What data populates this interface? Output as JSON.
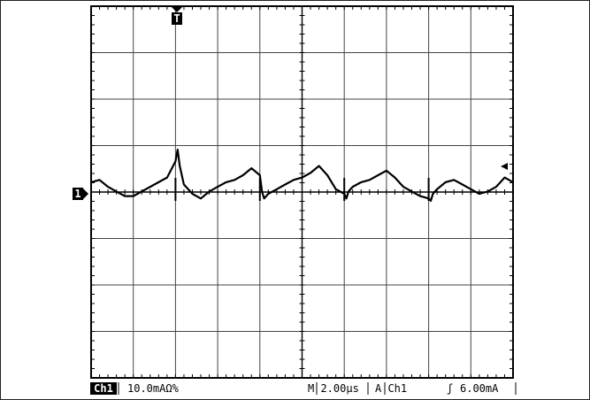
{
  "chart_data": {
    "type": "line",
    "instrument": "oscilloscope",
    "grid": {
      "divisions_x": 10,
      "divisions_y": 8,
      "minor_ticks": true
    },
    "series": [
      {
        "name": "Ch1",
        "x": [
          0,
          0.2,
          0.4,
          0.6,
          0.8,
          1.0,
          1.2,
          1.4,
          1.6,
          1.8,
          2.0,
          2.05,
          2.1,
          2.2,
          2.4,
          2.6,
          2.8,
          3.0,
          3.2,
          3.4,
          3.6,
          3.8,
          4.0,
          4.05,
          4.1,
          4.2,
          4.4,
          4.6,
          4.8,
          5.0,
          5.2,
          5.4,
          5.6,
          5.8,
          6.0,
          6.05,
          6.1,
          6.2,
          6.4,
          6.6,
          6.8,
          7.0,
          7.2,
          7.4,
          7.6,
          7.8,
          8.0,
          8.05,
          8.1,
          8.2,
          8.4,
          8.6,
          8.8,
          9.0,
          9.2,
          9.4,
          9.6,
          9.8,
          10.0
        ],
        "y": [
          0.25,
          0.3,
          0.15,
          0.05,
          -0.05,
          -0.05,
          0.05,
          0.15,
          0.25,
          0.35,
          0.7,
          0.95,
          0.6,
          0.2,
          0.0,
          -0.1,
          0.05,
          0.15,
          0.25,
          0.3,
          0.4,
          0.55,
          0.4,
          0.05,
          -0.1,
          0.0,
          0.1,
          0.2,
          0.3,
          0.35,
          0.45,
          0.6,
          0.4,
          0.1,
          0.0,
          -0.1,
          0.05,
          0.15,
          0.25,
          0.3,
          0.4,
          0.5,
          0.35,
          0.15,
          0.05,
          -0.05,
          -0.1,
          -0.15,
          0.0,
          0.1,
          0.25,
          0.3,
          0.2,
          0.1,
          0.0,
          0.05,
          0.15,
          0.35,
          0.25
        ]
      }
    ],
    "channel_marker": "1",
    "trigger_marker": "T",
    "ch1_scale": "10.0mAΩ%",
    "timebase": "M 2.00µs",
    "trigger_info": "A  Ch1",
    "trigger_slope": "ʃ",
    "trigger_level": "6.00mA"
  },
  "status": {
    "ch_label": "Ch1",
    "ch_scale": "10.0mAΩ%",
    "timebase": "M 2.00µs",
    "trigger_source": "A  Ch1",
    "trigger_slope": "ʃ",
    "trigger_level": "6.00mA"
  }
}
